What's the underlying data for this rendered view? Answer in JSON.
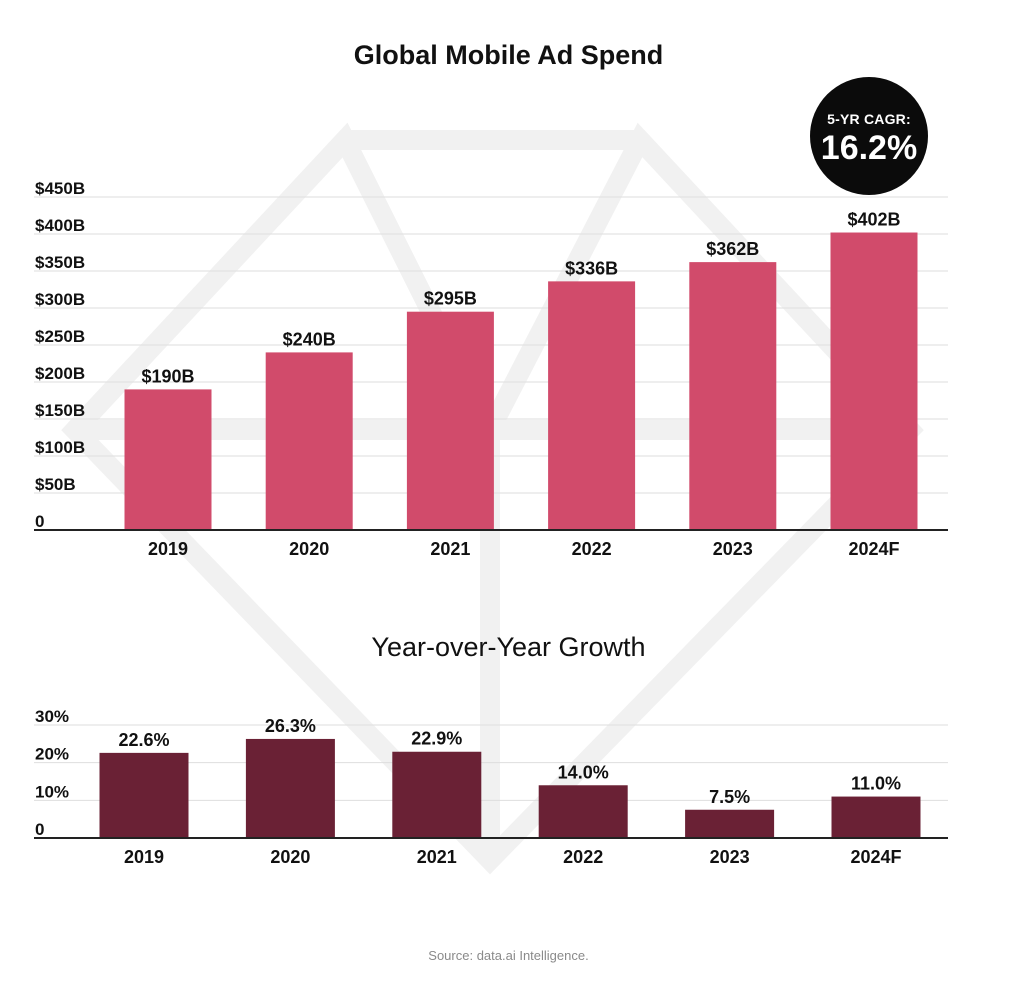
{
  "source": "Source: data.ai Intelligence.",
  "badge": {
    "label": "5-YR CAGR:",
    "value": "16.2%"
  },
  "colors": {
    "spend_bar": "#d14b6b",
    "growth_bar": "#6a2135",
    "grid": "#dedede",
    "axis": "#222222",
    "watermark": "#f2f2f2"
  },
  "chart_data": [
    {
      "type": "bar",
      "title": "Global Mobile Ad Spend",
      "categories": [
        "2019",
        "2020",
        "2021",
        "2022",
        "2023",
        "2024F"
      ],
      "values": [
        190,
        240,
        295,
        336,
        362,
        402
      ],
      "data_labels": [
        "$190B",
        "$240B",
        "$295B",
        "$336B",
        "$362B",
        "$402B"
      ],
      "ylim": [
        0,
        450
      ],
      "yticks": [
        0,
        50,
        100,
        150,
        200,
        250,
        300,
        350,
        400,
        450
      ],
      "ytick_labels": [
        "0",
        "$50B",
        "$100B",
        "$150B",
        "$200B",
        "$250B",
        "$300B",
        "$350B",
        "$400B",
        "$450B"
      ],
      "grid": true
    },
    {
      "type": "bar",
      "title": "Year-over-Year Growth",
      "categories": [
        "2019",
        "2020",
        "2021",
        "2022",
        "2023",
        "2024F"
      ],
      "values": [
        22.6,
        26.3,
        22.9,
        14.0,
        7.5,
        11.0
      ],
      "data_labels": [
        "22.6%",
        "26.3%",
        "22.9%",
        "14.0%",
        "7.5%",
        "11.0%"
      ],
      "ylim": [
        0,
        30
      ],
      "yticks": [
        0,
        10,
        20,
        30
      ],
      "ytick_labels": [
        "0",
        "10%",
        "20%",
        "30%"
      ],
      "grid": true
    }
  ]
}
